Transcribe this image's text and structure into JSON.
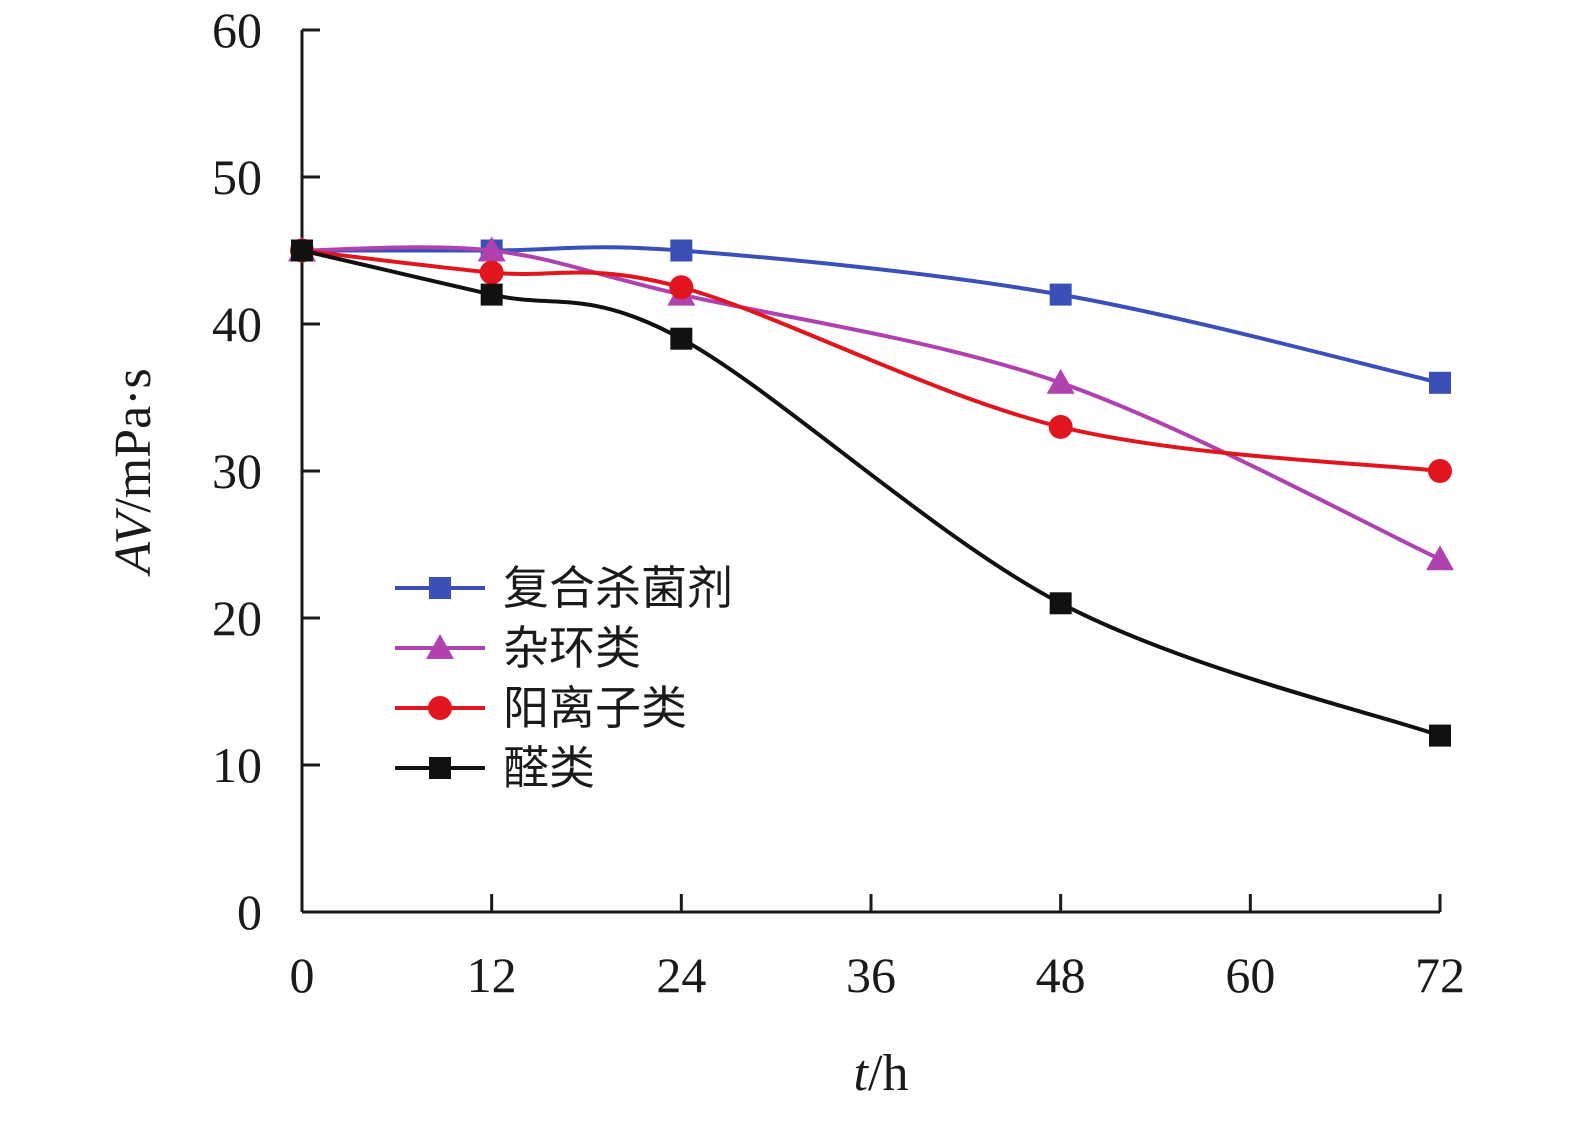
{
  "chart_data": {
    "type": "line",
    "xlabel": {
      "italic": "t",
      "unit": "/h"
    },
    "ylabel": {
      "italic": "AV",
      "unit": "/mPa·s"
    },
    "xlim": [
      0,
      72
    ],
    "ylim": [
      0,
      60
    ],
    "x_ticks": [
      0,
      12,
      24,
      36,
      48,
      60,
      72
    ],
    "y_ticks": [
      0,
      10,
      20,
      30,
      40,
      50,
      60
    ],
    "grid": false,
    "legend_position": "lower-left",
    "x": [
      0,
      12,
      24,
      48,
      72
    ],
    "series": [
      {
        "name": "复合杀菌剂",
        "values": [
          45,
          45,
          45,
          42,
          36
        ],
        "color": "#3a4fb8",
        "marker": "square"
      },
      {
        "name": "杂环类",
        "values": [
          45,
          45,
          42,
          36,
          24
        ],
        "color": "#b042b0",
        "marker": "triangle"
      },
      {
        "name": "阳离子类",
        "values": [
          45,
          43.5,
          42.5,
          33,
          30
        ],
        "color": "#e0151e",
        "marker": "circle"
      },
      {
        "name": "醛类",
        "values": [
          45,
          42,
          39,
          21,
          12
        ],
        "color": "#111111",
        "marker": "square"
      }
    ]
  }
}
